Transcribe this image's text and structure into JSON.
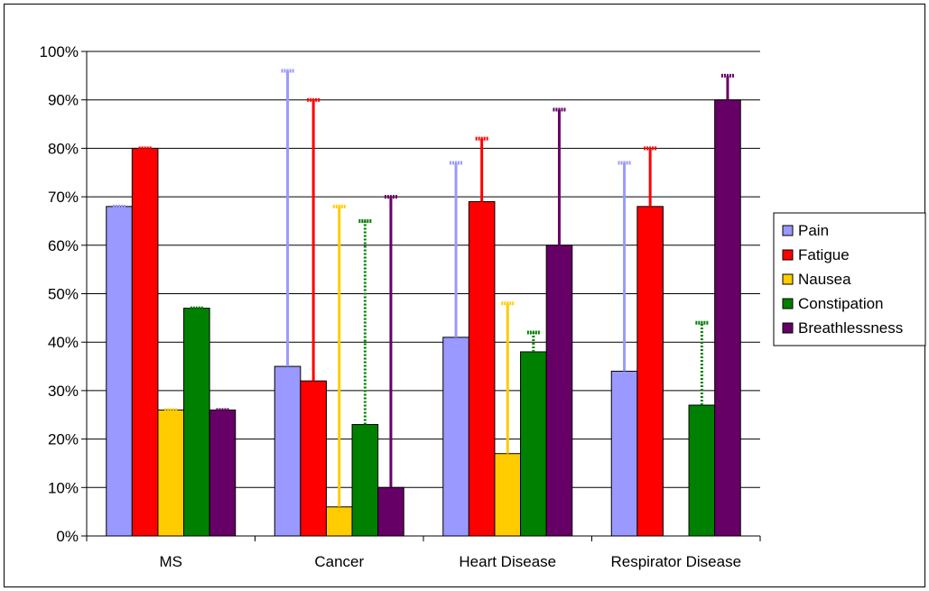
{
  "chart_data": {
    "type": "bar",
    "title": "",
    "xlabel": "",
    "ylabel": "",
    "ylim": [
      0,
      100
    ],
    "y_ticks": [
      "0%",
      "10%",
      "20%",
      "30%",
      "40%",
      "50%",
      "60%",
      "70%",
      "80%",
      "90%",
      "100%"
    ],
    "grid": "horizontal",
    "legend_position": "right",
    "categories": [
      "MS",
      "Cancer",
      "Heart Disease",
      "Respirator Disease"
    ],
    "series": [
      {
        "name": "Pain",
        "color": "#9999FF",
        "values": [
          68,
          35,
          41,
          34
        ],
        "error_low": [
          68,
          35,
          41,
          34
        ],
        "error_high": [
          68,
          96,
          77,
          77
        ]
      },
      {
        "name": "Fatigue",
        "color": "#FF0000",
        "values": [
          80,
          32,
          69,
          68
        ],
        "error_low": [
          80,
          32,
          69,
          68
        ],
        "error_high": [
          80,
          90,
          82,
          80
        ]
      },
      {
        "name": "Nausea",
        "color": "#FFCC00",
        "values": [
          26,
          6,
          17,
          null
        ],
        "error_low": [
          26,
          6,
          17,
          null
        ],
        "error_high": [
          26,
          68,
          48,
          null
        ]
      },
      {
        "name": "Constipation",
        "color": "#008000",
        "values": [
          47,
          23,
          38,
          27
        ],
        "error_low": [
          47,
          23,
          38,
          27
        ],
        "error_high": [
          47,
          65,
          42,
          44
        ]
      },
      {
        "name": "Breathlessness",
        "color": "#660066",
        "values": [
          26,
          10,
          60,
          90
        ],
        "error_low": [
          26,
          10,
          60,
          90
        ],
        "error_high": [
          26,
          70,
          88,
          95
        ]
      }
    ]
  }
}
